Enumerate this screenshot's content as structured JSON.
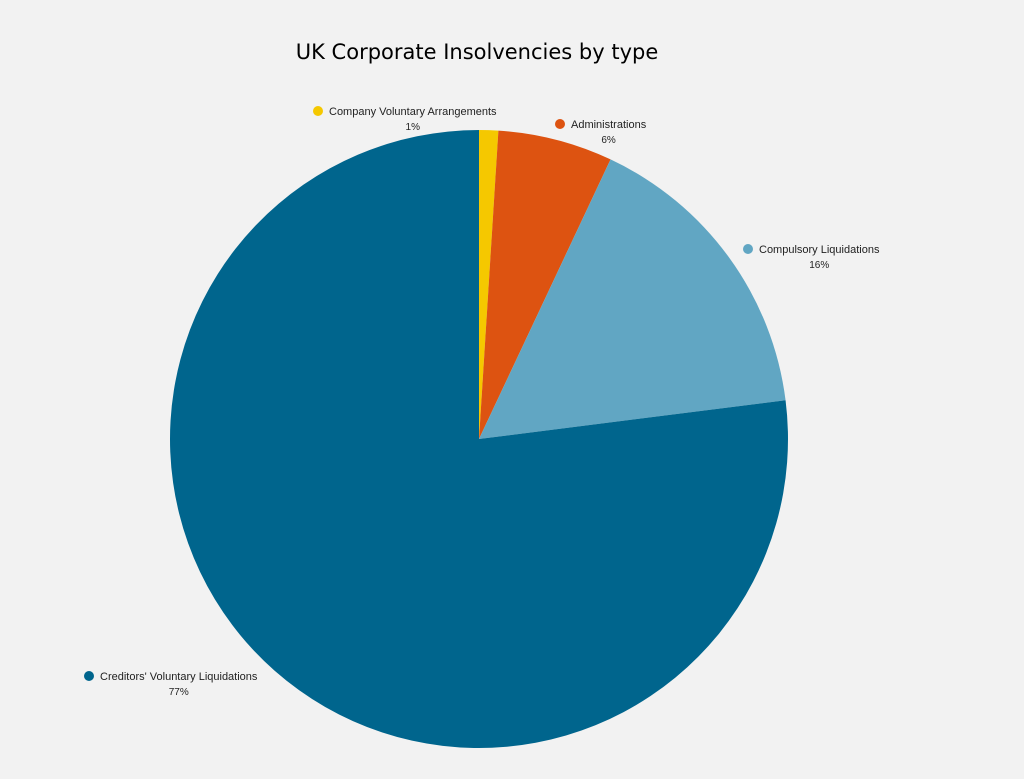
{
  "chart_data": {
    "type": "pie",
    "title": "UK Corporate Insolvencies by type",
    "slices": [
      {
        "label": "Company Voluntary Arrangements",
        "value": 1,
        "value_label": "1%",
        "color": "#f5c800"
      },
      {
        "label": "Administrations",
        "value": 6,
        "value_label": "6%",
        "color": "#dd5311"
      },
      {
        "label": "Compulsory Liquidations",
        "value": 16,
        "value_label": "16%",
        "color": "#61a6c3"
      },
      {
        "label": "Creditors' Voluntary Liquidations",
        "value": 77,
        "value_label": "77%",
        "color": "#00658d"
      }
    ],
    "start_angle_deg": 0,
    "direction": "clockwise",
    "legend": "none"
  }
}
